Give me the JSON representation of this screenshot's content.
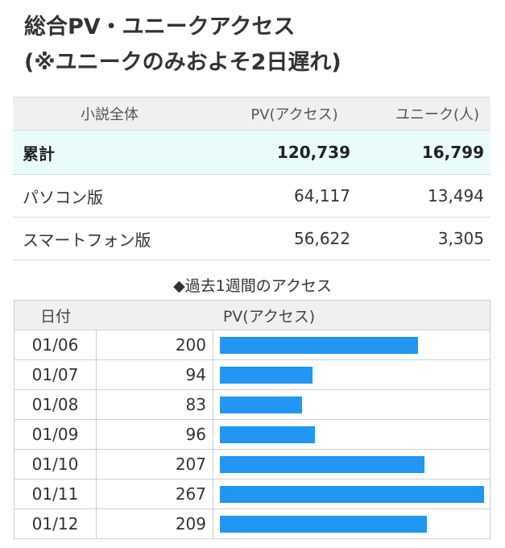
{
  "title": {
    "line1": "総合PV・ユニークアクセス",
    "line2": "(※ユニークのみおよそ2日遅れ)"
  },
  "summary": {
    "headers": [
      "小説全体",
      "PV(アクセス)",
      "ユニーク(人)"
    ],
    "rows": [
      {
        "label": "累計",
        "pv": "120,739",
        "unique": "16,799"
      },
      {
        "label": "パソコン版",
        "pv": "64,117",
        "unique": "13,494"
      },
      {
        "label": "スマートフォン版",
        "pv": "56,622",
        "unique": "3,305"
      }
    ]
  },
  "weekly": {
    "title": "◆過去1週間のアクセス",
    "headers": [
      "日付",
      "PV(アクセス)"
    ],
    "bar_color": "#2196f3",
    "max": 267
  },
  "chart_data": {
    "type": "bar",
    "categories": [
      "01/06",
      "01/07",
      "01/08",
      "01/09",
      "01/10",
      "01/11",
      "01/12"
    ],
    "values": [
      200,
      94,
      83,
      96,
      207,
      267,
      209
    ]
  }
}
